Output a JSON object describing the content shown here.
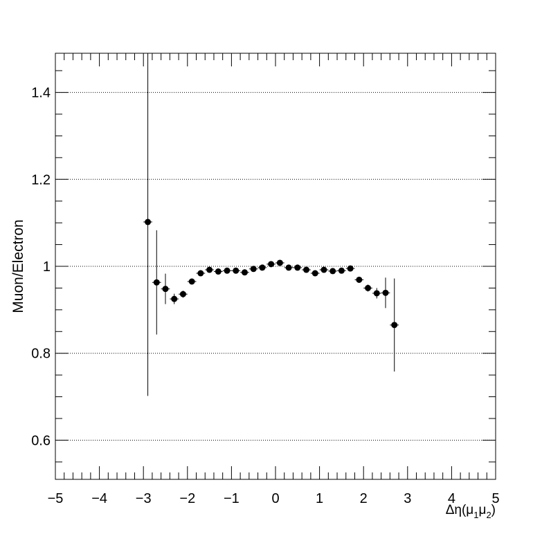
{
  "chart_data": {
    "type": "scatter",
    "title": "",
    "xlabel": "Δη(μ1μ2)",
    "xlabel_parts": {
      "main": "Δη(μ",
      "sub1": "1",
      "mid": "μ",
      "sub2": "2",
      "close": ")"
    },
    "ylabel": "Muon/Electron",
    "xlim": [
      -5,
      5
    ],
    "ylim": [
      0.51,
      1.49
    ],
    "x_ticks": [
      -5,
      -4,
      -3,
      -2,
      -1,
      0,
      1,
      2,
      3,
      4,
      5
    ],
    "x_tick_labels": [
      "−5",
      "−4",
      "−3",
      "−2",
      "−1",
      "0",
      "1",
      "2",
      "3",
      "4",
      "5"
    ],
    "y_ticks": [
      0.6,
      0.8,
      1.0,
      1.2,
      1.4
    ],
    "y_tick_labels": [
      "0.6",
      "0.8",
      "1",
      "1.2",
      "1.4"
    ],
    "grid": "horizontal dotted",
    "marker_color": "#000000",
    "points": [
      {
        "x": -2.9,
        "y": 1.102,
        "err": 0.4
      },
      {
        "x": -2.7,
        "y": 0.963,
        "err": 0.12
      },
      {
        "x": -2.5,
        "y": 0.948,
        "err": 0.035
      },
      {
        "x": -2.3,
        "y": 0.925,
        "err": 0.012
      },
      {
        "x": -2.1,
        "y": 0.936,
        "err": 0.008
      },
      {
        "x": -1.9,
        "y": 0.965,
        "err": 0.006
      },
      {
        "x": -1.7,
        "y": 0.984,
        "err": 0.006
      },
      {
        "x": -1.5,
        "y": 0.992,
        "err": 0.005
      },
      {
        "x": -1.3,
        "y": 0.988,
        "err": 0.005
      },
      {
        "x": -1.1,
        "y": 0.99,
        "err": 0.005
      },
      {
        "x": -0.9,
        "y": 0.99,
        "err": 0.005
      },
      {
        "x": -0.7,
        "y": 0.986,
        "err": 0.005
      },
      {
        "x": -0.5,
        "y": 0.994,
        "err": 0.005
      },
      {
        "x": -0.3,
        "y": 0.997,
        "err": 0.005
      },
      {
        "x": -0.1,
        "y": 1.005,
        "err": 0.005
      },
      {
        "x": 0.1,
        "y": 1.008,
        "err": 0.005
      },
      {
        "x": 0.3,
        "y": 0.997,
        "err": 0.005
      },
      {
        "x": 0.5,
        "y": 0.997,
        "err": 0.005
      },
      {
        "x": 0.7,
        "y": 0.992,
        "err": 0.005
      },
      {
        "x": 0.9,
        "y": 0.984,
        "err": 0.005
      },
      {
        "x": 1.1,
        "y": 0.992,
        "err": 0.005
      },
      {
        "x": 1.3,
        "y": 0.989,
        "err": 0.005
      },
      {
        "x": 1.5,
        "y": 0.99,
        "err": 0.005
      },
      {
        "x": 1.7,
        "y": 0.995,
        "err": 0.005
      },
      {
        "x": 1.9,
        "y": 0.969,
        "err": 0.006
      },
      {
        "x": 2.1,
        "y": 0.95,
        "err": 0.008
      },
      {
        "x": 2.3,
        "y": 0.938,
        "err": 0.012
      },
      {
        "x": 2.5,
        "y": 0.939,
        "err": 0.035
      },
      {
        "x": 2.7,
        "y": 0.865,
        "err": 0.107
      }
    ]
  }
}
